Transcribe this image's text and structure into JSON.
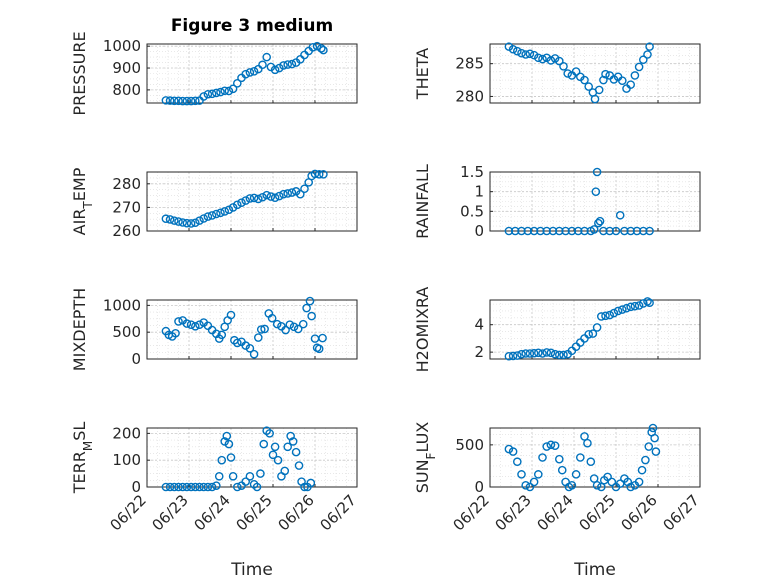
{
  "figure": {
    "title": "Figure 3 medium",
    "xlabel": "Time",
    "x_tick_labels": [
      "06/22",
      "06/23",
      "06/24",
      "06/25",
      "06/26",
      "06/27"
    ]
  },
  "chart_data": [
    {
      "type": "scatter",
      "title": "Figure 3 medium",
      "ylabel": "PRESSURE",
      "xlim": [
        0,
        5
      ],
      "ylim": [
        740,
        1010
      ],
      "yticks": [
        800,
        900,
        1000
      ],
      "grid": true,
      "color": "#0072bd",
      "points": [
        [
          0.45,
          752
        ],
        [
          0.55,
          751
        ],
        [
          0.65,
          750
        ],
        [
          0.75,
          750
        ],
        [
          0.85,
          749
        ],
        [
          0.95,
          749
        ],
        [
          1.05,
          749
        ],
        [
          1.15,
          750
        ],
        [
          1.25,
          751
        ],
        [
          1.35,
          770
        ],
        [
          1.45,
          780
        ],
        [
          1.55,
          782
        ],
        [
          1.65,
          786
        ],
        [
          1.75,
          790
        ],
        [
          1.85,
          796
        ],
        [
          1.95,
          795
        ],
        [
          2.05,
          805
        ],
        [
          2.15,
          830
        ],
        [
          2.25,
          855
        ],
        [
          2.35,
          872
        ],
        [
          2.45,
          880
        ],
        [
          2.55,
          885
        ],
        [
          2.65,
          895
        ],
        [
          2.75,
          915
        ],
        [
          2.85,
          950
        ],
        [
          2.95,
          905
        ],
        [
          3.05,
          892
        ],
        [
          3.15,
          900
        ],
        [
          3.25,
          912
        ],
        [
          3.35,
          916
        ],
        [
          3.45,
          918
        ],
        [
          3.55,
          925
        ],
        [
          3.65,
          940
        ],
        [
          3.75,
          960
        ],
        [
          3.85,
          978
        ],
        [
          3.95,
          995
        ],
        [
          4.05,
          1000
        ],
        [
          4.15,
          990
        ],
        [
          4.2,
          982
        ]
      ]
    },
    {
      "type": "scatter",
      "ylabel": "THETA",
      "xlim": [
        0,
        5
      ],
      "ylim": [
        279,
        288
      ],
      "yticks": [
        280,
        285
      ],
      "grid": true,
      "color": "#0072bd",
      "points": [
        [
          0.45,
          287.6
        ],
        [
          0.55,
          287.2
        ],
        [
          0.65,
          286.9
        ],
        [
          0.75,
          286.6
        ],
        [
          0.85,
          286.4
        ],
        [
          0.95,
          286.5
        ],
        [
          1.05,
          286.3
        ],
        [
          1.15,
          285.9
        ],
        [
          1.25,
          285.7
        ],
        [
          1.35,
          285.9
        ],
        [
          1.45,
          285.5
        ],
        [
          1.55,
          285.8
        ],
        [
          1.65,
          285.4
        ],
        [
          1.75,
          284.6
        ],
        [
          1.85,
          283.5
        ],
        [
          1.95,
          283.2
        ],
        [
          2.05,
          283.8
        ],
        [
          2.15,
          283.0
        ],
        [
          2.25,
          282.5
        ],
        [
          2.35,
          281.5
        ],
        [
          2.45,
          280.6
        ],
        [
          2.5,
          279.6
        ],
        [
          2.6,
          281.0
        ],
        [
          2.7,
          282.5
        ],
        [
          2.75,
          283.4
        ],
        [
          2.85,
          283.2
        ],
        [
          2.95,
          282.6
        ],
        [
          3.05,
          283.0
        ],
        [
          3.15,
          282.4
        ],
        [
          3.25,
          281.2
        ],
        [
          3.35,
          281.8
        ],
        [
          3.45,
          283.2
        ],
        [
          3.55,
          284.5
        ],
        [
          3.65,
          285.6
        ],
        [
          3.75,
          286.4
        ],
        [
          3.8,
          287.6
        ]
      ]
    },
    {
      "type": "scatter",
      "ylabel": "AIR_TEMP",
      "xlim": [
        0,
        5
      ],
      "ylim": [
        260,
        285
      ],
      "yticks": [
        260,
        270,
        280
      ],
      "grid": true,
      "color": "#0072bd",
      "points": [
        [
          0.45,
          265.2
        ],
        [
          0.55,
          264.9
        ],
        [
          0.65,
          264.4
        ],
        [
          0.75,
          264.0
        ],
        [
          0.85,
          263.6
        ],
        [
          0.95,
          263.3
        ],
        [
          1.05,
          263.2
        ],
        [
          1.15,
          263.5
        ],
        [
          1.25,
          264.4
        ],
        [
          1.35,
          265.3
        ],
        [
          1.45,
          266.1
        ],
        [
          1.55,
          266.6
        ],
        [
          1.65,
          267.2
        ],
        [
          1.75,
          267.7
        ],
        [
          1.85,
          268.3
        ],
        [
          1.95,
          269.0
        ],
        [
          2.05,
          270.0
        ],
        [
          2.15,
          271.1
        ],
        [
          2.25,
          272.0
        ],
        [
          2.35,
          272.9
        ],
        [
          2.45,
          273.8
        ],
        [
          2.55,
          274.0
        ],
        [
          2.65,
          273.6
        ],
        [
          2.75,
          274.3
        ],
        [
          2.85,
          275.2
        ],
        [
          2.95,
          274.6
        ],
        [
          3.05,
          274.1
        ],
        [
          3.15,
          274.8
        ],
        [
          3.25,
          275.6
        ],
        [
          3.35,
          275.9
        ],
        [
          3.45,
          276.3
        ],
        [
          3.55,
          276.8
        ],
        [
          3.65,
          275.6
        ],
        [
          3.75,
          277.9
        ],
        [
          3.85,
          280.6
        ],
        [
          3.92,
          283.3
        ],
        [
          4.0,
          284.2
        ],
        [
          4.1,
          284.0
        ],
        [
          4.2,
          284.0
        ]
      ]
    },
    {
      "type": "scatter",
      "ylabel": "RAINFALL",
      "xlim": [
        0,
        5
      ],
      "ylim": [
        0,
        1.5
      ],
      "yticks": [
        0,
        0.5,
        1,
        1.5
      ],
      "grid": true,
      "color": "#0072bd",
      "points": [
        [
          0.45,
          0
        ],
        [
          0.6,
          0
        ],
        [
          0.75,
          0
        ],
        [
          0.9,
          0
        ],
        [
          1.05,
          0
        ],
        [
          1.2,
          0
        ],
        [
          1.35,
          0
        ],
        [
          1.5,
          0
        ],
        [
          1.65,
          0
        ],
        [
          1.8,
          0
        ],
        [
          1.95,
          0
        ],
        [
          2.1,
          0
        ],
        [
          2.25,
          0
        ],
        [
          2.4,
          0
        ],
        [
          2.48,
          0.04
        ],
        [
          2.52,
          1.0
        ],
        [
          2.55,
          1.5
        ],
        [
          2.58,
          0.2
        ],
        [
          2.62,
          0.25
        ],
        [
          2.7,
          0
        ],
        [
          2.85,
          0
        ],
        [
          3.0,
          0
        ],
        [
          3.1,
          0.4
        ],
        [
          3.2,
          0
        ],
        [
          3.35,
          0
        ],
        [
          3.5,
          0
        ],
        [
          3.65,
          0
        ],
        [
          3.8,
          0
        ]
      ]
    },
    {
      "type": "scatter",
      "ylabel": "MIXDEPTH",
      "xlim": [
        0,
        5
      ],
      "ylim": [
        0,
        1100
      ],
      "yticks": [
        0,
        500,
        1000
      ],
      "grid": true,
      "color": "#0072bd",
      "points": [
        [
          0.45,
          520
        ],
        [
          0.52,
          450
        ],
        [
          0.6,
          420
        ],
        [
          0.68,
          480
        ],
        [
          0.75,
          700
        ],
        [
          0.85,
          720
        ],
        [
          0.95,
          660
        ],
        [
          1.05,
          640
        ],
        [
          1.15,
          610
        ],
        [
          1.25,
          640
        ],
        [
          1.35,
          680
        ],
        [
          1.45,
          620
        ],
        [
          1.55,
          540
        ],
        [
          1.65,
          470
        ],
        [
          1.72,
          380
        ],
        [
          1.78,
          450
        ],
        [
          1.85,
          600
        ],
        [
          1.92,
          720
        ],
        [
          2.0,
          820
        ],
        [
          2.08,
          350
        ],
        [
          2.15,
          300
        ],
        [
          2.25,
          320
        ],
        [
          2.35,
          250
        ],
        [
          2.45,
          200
        ],
        [
          2.55,
          90
        ],
        [
          2.65,
          400
        ],
        [
          2.72,
          550
        ],
        [
          2.8,
          560
        ],
        [
          2.9,
          850
        ],
        [
          2.98,
          760
        ],
        [
          3.1,
          650
        ],
        [
          3.2,
          610
        ],
        [
          3.3,
          540
        ],
        [
          3.4,
          640
        ],
        [
          3.5,
          600
        ],
        [
          3.6,
          560
        ],
        [
          3.72,
          650
        ],
        [
          3.8,
          950
        ],
        [
          3.88,
          1080
        ],
        [
          3.92,
          800
        ],
        [
          4.0,
          380
        ],
        [
          4.05,
          210
        ],
        [
          4.1,
          190
        ],
        [
          4.18,
          390
        ]
      ]
    },
    {
      "type": "scatter",
      "ylabel": "H2OMIXRA",
      "xlim": [
        0,
        5
      ],
      "ylim": [
        1.5,
        5.8
      ],
      "yticks": [
        2,
        4
      ],
      "grid": true,
      "color": "#0072bd",
      "points": [
        [
          0.45,
          1.7
        ],
        [
          0.55,
          1.72
        ],
        [
          0.65,
          1.75
        ],
        [
          0.75,
          1.85
        ],
        [
          0.85,
          1.9
        ],
        [
          0.95,
          1.9
        ],
        [
          1.05,
          1.92
        ],
        [
          1.15,
          1.95
        ],
        [
          1.25,
          1.9
        ],
        [
          1.35,
          1.98
        ],
        [
          1.45,
          1.95
        ],
        [
          1.55,
          1.85
        ],
        [
          1.65,
          1.8
        ],
        [
          1.75,
          1.8
        ],
        [
          1.85,
          1.85
        ],
        [
          1.95,
          2.1
        ],
        [
          2.05,
          2.4
        ],
        [
          2.15,
          2.7
        ],
        [
          2.25,
          3.0
        ],
        [
          2.35,
          3.3
        ],
        [
          2.45,
          3.35
        ],
        [
          2.55,
          3.8
        ],
        [
          2.65,
          4.6
        ],
        [
          2.75,
          4.65
        ],
        [
          2.85,
          4.7
        ],
        [
          2.95,
          4.85
        ],
        [
          3.05,
          5.0
        ],
        [
          3.15,
          5.1
        ],
        [
          3.25,
          5.2
        ],
        [
          3.35,
          5.3
        ],
        [
          3.45,
          5.35
        ],
        [
          3.55,
          5.4
        ],
        [
          3.65,
          5.55
        ],
        [
          3.75,
          5.7
        ],
        [
          3.8,
          5.6
        ]
      ]
    },
    {
      "type": "scatter",
      "ylabel": "TERR_MSL",
      "xlim": [
        0,
        5
      ],
      "ylim": [
        0,
        220
      ],
      "yticks": [
        0,
        100,
        200
      ],
      "grid": true,
      "color": "#0072bd",
      "points": [
        [
          0.45,
          0
        ],
        [
          0.55,
          0
        ],
        [
          0.65,
          0
        ],
        [
          0.75,
          0
        ],
        [
          0.85,
          0
        ],
        [
          0.95,
          0
        ],
        [
          1.05,
          0
        ],
        [
          1.15,
          0
        ],
        [
          1.25,
          0
        ],
        [
          1.35,
          0
        ],
        [
          1.45,
          0
        ],
        [
          1.55,
          0
        ],
        [
          1.65,
          5
        ],
        [
          1.72,
          40
        ],
        [
          1.78,
          100
        ],
        [
          1.85,
          170
        ],
        [
          1.9,
          190
        ],
        [
          1.95,
          160
        ],
        [
          2.0,
          110
        ],
        [
          2.05,
          40
        ],
        [
          2.15,
          0
        ],
        [
          2.25,
          5
        ],
        [
          2.35,
          20
        ],
        [
          2.45,
          40
        ],
        [
          2.55,
          10
        ],
        [
          2.62,
          0
        ],
        [
          2.7,
          50
        ],
        [
          2.78,
          160
        ],
        [
          2.85,
          210
        ],
        [
          2.92,
          200
        ],
        [
          3.0,
          120
        ],
        [
          3.05,
          150
        ],
        [
          3.12,
          100
        ],
        [
          3.2,
          40
        ],
        [
          3.28,
          60
        ],
        [
          3.35,
          150
        ],
        [
          3.42,
          190
        ],
        [
          3.48,
          170
        ],
        [
          3.55,
          130
        ],
        [
          3.62,
          80
        ],
        [
          3.68,
          20
        ],
        [
          3.75,
          0
        ],
        [
          3.82,
          0
        ],
        [
          3.9,
          15
        ]
      ]
    },
    {
      "type": "scatter",
      "ylabel": "SUN_FLUX",
      "xlim": [
        0,
        5
      ],
      "ylim": [
        0,
        700
      ],
      "yticks": [
        0,
        500
      ],
      "grid": true,
      "color": "#0072bd",
      "points": [
        [
          0.45,
          450
        ],
        [
          0.55,
          420
        ],
        [
          0.65,
          300
        ],
        [
          0.75,
          150
        ],
        [
          0.85,
          20
        ],
        [
          0.95,
          0
        ],
        [
          1.05,
          60
        ],
        [
          1.15,
          150
        ],
        [
          1.25,
          350
        ],
        [
          1.35,
          480
        ],
        [
          1.45,
          500
        ],
        [
          1.55,
          490
        ],
        [
          1.65,
          330
        ],
        [
          1.72,
          200
        ],
        [
          1.8,
          60
        ],
        [
          1.88,
          0
        ],
        [
          1.95,
          20
        ],
        [
          2.05,
          150
        ],
        [
          2.15,
          350
        ],
        [
          2.25,
          600
        ],
        [
          2.32,
          520
        ],
        [
          2.4,
          300
        ],
        [
          2.48,
          100
        ],
        [
          2.55,
          20
        ],
        [
          2.65,
          0
        ],
        [
          2.72,
          80
        ],
        [
          2.8,
          120
        ],
        [
          2.9,
          60
        ],
        [
          3.0,
          0
        ],
        [
          3.1,
          40
        ],
        [
          3.2,
          100
        ],
        [
          3.28,
          60
        ],
        [
          3.35,
          0
        ],
        [
          3.45,
          20
        ],
        [
          3.55,
          60
        ],
        [
          3.62,
          200
        ],
        [
          3.7,
          320
        ],
        [
          3.78,
          480
        ],
        [
          3.85,
          650
        ],
        [
          3.88,
          700
        ],
        [
          3.92,
          580
        ],
        [
          3.95,
          420
        ]
      ]
    }
  ]
}
